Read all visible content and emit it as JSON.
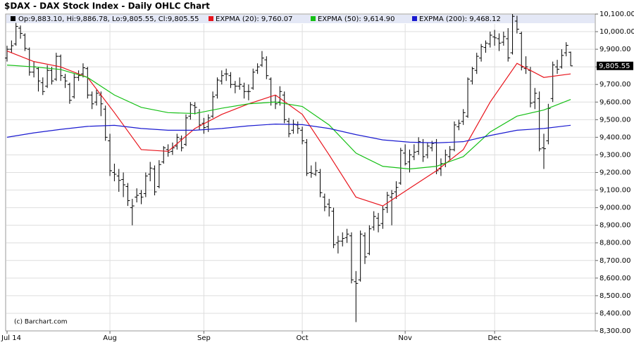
{
  "chart_data": {
    "type": "ohlc",
    "title": "$DAX - DAX Stock Index - Daily OHLC Chart",
    "watermark": "(c) Barchart.com",
    "header": "Op:9,883.10, Hi:9,886.78, Lo:9,805.55, Cl:9,805.55",
    "header_color": "#000000",
    "bar_color": "#000000",
    "grid": true,
    "ylim": [
      8300,
      10100
    ],
    "yticks": [
      {
        "value": 8300,
        "label": "8,300.00"
      },
      {
        "value": 8400,
        "label": "8,400.00"
      },
      {
        "value": 8500,
        "label": "8,500.00"
      },
      {
        "value": 8600,
        "label": "8,600.00"
      },
      {
        "value": 8700,
        "label": "8,700.00"
      },
      {
        "value": 8800,
        "label": "8,800.00"
      },
      {
        "value": 8900,
        "label": "8,900.00"
      },
      {
        "value": 9000,
        "label": "9,000.00"
      },
      {
        "value": 9100,
        "label": "9,100.00"
      },
      {
        "value": 9200,
        "label": "9,200.00"
      },
      {
        "value": 9300,
        "label": "9,300.00"
      },
      {
        "value": 9400,
        "label": "9,400.00"
      },
      {
        "value": 9500,
        "label": "9,500.00"
      },
      {
        "value": 9600,
        "label": "9,600.00"
      },
      {
        "value": 9700,
        "label": "9,700.00"
      },
      {
        "value": 9800,
        "label": "9,800.00"
      },
      {
        "value": 9900,
        "label": "9,900.00"
      },
      {
        "value": 10000,
        "label": "10,000.00"
      },
      {
        "value": 10100,
        "label": "10,100.00"
      }
    ],
    "last_price": {
      "value": 9805.55,
      "label": "9,805.55"
    },
    "categories": [
      "Jul 14",
      null,
      null,
      null,
      null,
      null,
      null,
      null,
      null,
      null,
      null,
      null,
      null,
      null,
      null,
      null,
      null,
      null,
      null,
      null,
      null,
      null,
      null,
      "Aug",
      null,
      null,
      null,
      null,
      null,
      null,
      null,
      null,
      null,
      null,
      null,
      null,
      null,
      null,
      null,
      null,
      null,
      null,
      null,
      null,
      "Sep",
      null,
      null,
      null,
      null,
      null,
      null,
      null,
      null,
      null,
      null,
      null,
      null,
      null,
      null,
      null,
      null,
      null,
      null,
      null,
      null,
      null,
      "Oct",
      null,
      null,
      null,
      null,
      null,
      null,
      null,
      null,
      null,
      null,
      null,
      null,
      null,
      null,
      null,
      null,
      null,
      null,
      null,
      null,
      null,
      null,
      "Nov",
      null,
      null,
      null,
      null,
      null,
      null,
      null,
      null,
      null,
      null,
      null,
      null,
      null,
      null,
      null,
      null,
      null,
      null,
      null,
      "Dec",
      null,
      null,
      null,
      null,
      null,
      null,
      null,
      null,
      null,
      null,
      null,
      null,
      null,
      null,
      null,
      null,
      null
    ],
    "ohlc": [
      [
        9850,
        9920,
        9830,
        9900
      ],
      [
        9900,
        9950,
        9880,
        9920
      ],
      [
        9930,
        10050,
        9920,
        10030
      ],
      [
        10020,
        10035,
        9960,
        9990
      ],
      [
        9980,
        9990,
        9890,
        9905
      ],
      [
        9900,
        9910,
        9750,
        9770
      ],
      [
        9770,
        9830,
        9740,
        9800
      ],
      [
        9790,
        9800,
        9660,
        9720
      ],
      [
        9710,
        9740,
        9640,
        9660
      ],
      [
        9690,
        9810,
        9680,
        9780
      ],
      [
        9780,
        9800,
        9700,
        9720
      ],
      [
        9730,
        9880,
        9720,
        9860
      ],
      [
        9860,
        9870,
        9720,
        9750
      ],
      [
        9740,
        9760,
        9680,
        9720
      ],
      [
        9700,
        9710,
        9590,
        9610
      ],
      [
        9630,
        9760,
        9620,
        9740
      ],
      [
        9740,
        9780,
        9720,
        9750
      ],
      [
        9760,
        9820,
        9740,
        9795
      ],
      [
        9790,
        9800,
        9620,
        9640
      ],
      [
        9640,
        9660,
        9560,
        9590
      ],
      [
        9600,
        9670,
        9580,
        9650
      ],
      [
        9640,
        9660,
        9520,
        9590
      ],
      [
        9560,
        9580,
        9380,
        9400
      ],
      [
        9380,
        9420,
        9180,
        9210
      ],
      [
        9200,
        9250,
        9150,
        9190
      ],
      [
        9180,
        9220,
        9090,
        9155
      ],
      [
        9160,
        9200,
        9060,
        9130
      ],
      [
        9120,
        9140,
        9010,
        9040
      ],
      [
        9000,
        9050,
        8900,
        9010
      ],
      [
        9060,
        9110,
        9030,
        9070
      ],
      [
        9080,
        9100,
        9020,
        9060
      ],
      [
        9080,
        9200,
        9060,
        9180
      ],
      [
        9190,
        9260,
        9150,
        9225
      ],
      [
        9220,
        9240,
        9070,
        9090
      ],
      [
        9120,
        9270,
        9110,
        9245
      ],
      [
        9260,
        9350,
        9250,
        9340
      ],
      [
        9330,
        9360,
        9290,
        9315
      ],
      [
        9320,
        9370,
        9300,
        9340
      ],
      [
        9350,
        9420,
        9330,
        9400
      ],
      [
        9390,
        9410,
        9320,
        9340
      ],
      [
        9360,
        9530,
        9350,
        9510
      ],
      [
        9520,
        9600,
        9500,
        9585
      ],
      [
        9580,
        9600,
        9530,
        9570
      ],
      [
        9540,
        9560,
        9440,
        9470
      ],
      [
        9480,
        9510,
        9420,
        9455
      ],
      [
        9460,
        9530,
        9430,
        9510
      ],
      [
        9520,
        9660,
        9510,
        9630
      ],
      [
        9640,
        9740,
        9620,
        9725
      ],
      [
        9720,
        9780,
        9700,
        9750
      ],
      [
        9760,
        9790,
        9720,
        9760
      ],
      [
        9750,
        9770,
        9680,
        9700
      ],
      [
        9700,
        9720,
        9650,
        9690
      ],
      [
        9690,
        9740,
        9670,
        9700
      ],
      [
        9690,
        9710,
        9620,
        9660
      ],
      [
        9660,
        9700,
        9610,
        9660
      ],
      [
        9680,
        9790,
        9670,
        9770
      ],
      [
        9780,
        9820,
        9760,
        9800
      ],
      [
        9810,
        9890,
        9800,
        9850
      ],
      [
        9840,
        9860,
        9730,
        9750
      ],
      [
        9730,
        9740,
        9580,
        9600
      ],
      [
        9600,
        9640,
        9560,
        9590
      ],
      [
        9600,
        9690,
        9580,
        9660
      ],
      [
        9640,
        9660,
        9480,
        9500
      ],
      [
        9490,
        9510,
        9400,
        9420
      ],
      [
        9440,
        9500,
        9420,
        9475
      ],
      [
        9470,
        9490,
        9420,
        9450
      ],
      [
        9440,
        9460,
        9360,
        9380
      ],
      [
        9370,
        9390,
        9180,
        9195
      ],
      [
        9200,
        9240,
        9170,
        9195
      ],
      [
        9190,
        9260,
        9180,
        9210
      ],
      [
        9200,
        9220,
        9060,
        9085
      ],
      [
        9060,
        9080,
        8980,
        9005
      ],
      [
        9020,
        9050,
        8950,
        9000
      ],
      [
        8980,
        9000,
        8770,
        8790
      ],
      [
        8800,
        8840,
        8740,
        8810
      ],
      [
        8810,
        8860,
        8780,
        8825
      ],
      [
        8830,
        8880,
        8800,
        8850
      ],
      [
        8840,
        8860,
        8570,
        8590
      ],
      [
        8580,
        8640,
        8350,
        8570
      ],
      [
        8590,
        8870,
        8580,
        8850
      ],
      [
        8840,
        8860,
        8680,
        8720
      ],
      [
        8740,
        8900,
        8730,
        8880
      ],
      [
        8890,
        8980,
        8870,
        8950
      ],
      [
        8940,
        8970,
        8860,
        8900
      ],
      [
        8910,
        9010,
        8880,
        8990
      ],
      [
        9000,
        9090,
        8970,
        9070
      ],
      [
        9060,
        9100,
        8900,
        9080
      ],
      [
        9090,
        9150,
        9050,
        9115
      ],
      [
        9140,
        9340,
        9130,
        9325
      ],
      [
        9310,
        9360,
        9240,
        9250
      ],
      [
        9260,
        9330,
        9200,
        9300
      ],
      [
        9290,
        9360,
        9270,
        9315
      ],
      [
        9320,
        9400,
        9300,
        9375
      ],
      [
        9370,
        9390,
        9260,
        9290
      ],
      [
        9300,
        9370,
        9280,
        9350
      ],
      [
        9340,
        9380,
        9320,
        9365
      ],
      [
        9370,
        9390,
        9190,
        9210
      ],
      [
        9220,
        9280,
        9180,
        9250
      ],
      [
        9250,
        9330,
        9230,
        9300
      ],
      [
        9290,
        9350,
        9270,
        9330
      ],
      [
        9330,
        9490,
        9320,
        9470
      ],
      [
        9460,
        9500,
        9440,
        9480
      ],
      [
        9490,
        9560,
        9470,
        9540
      ],
      [
        9520,
        9740,
        9510,
        9730
      ],
      [
        9720,
        9800,
        9700,
        9790
      ],
      [
        9780,
        9880,
        9760,
        9860
      ],
      [
        9850,
        9930,
        9830,
        9915
      ],
      [
        9910,
        9950,
        9880,
        9935
      ],
      [
        9930,
        10000,
        9910,
        9980
      ],
      [
        9970,
        10010,
        9920,
        9965
      ],
      [
        9960,
        9990,
        9890,
        9935
      ],
      [
        9940,
        10000,
        9920,
        9972
      ],
      [
        9960,
        10020,
        9830,
        9851
      ],
      [
        9880,
        10100,
        9870,
        10087
      ],
      [
        10060,
        10090,
        9990,
        10014
      ],
      [
        9990,
        10000,
        9780,
        9799
      ],
      [
        9790,
        9860,
        9760,
        9800
      ],
      [
        9780,
        9800,
        9570,
        9594
      ],
      [
        9600,
        9680,
        9560,
        9650
      ],
      [
        9620,
        9660,
        9320,
        9334
      ],
      [
        9340,
        9420,
        9220,
        9335
      ],
      [
        9380,
        9590,
        9360,
        9564
      ],
      [
        9620,
        9830,
        9600,
        9811
      ],
      [
        9800,
        9840,
        9760,
        9786
      ],
      [
        9800,
        9900,
        9790,
        9865
      ],
      [
        9880,
        9940,
        9860,
        9922
      ],
      [
        9883.1,
        9886.78,
        9805.55,
        9805.55
      ]
    ],
    "series": [
      {
        "name": "EXPMA (20): 9,760.07",
        "color": "#e8141c",
        "x": [
          0,
          6,
          12,
          18,
          24,
          30,
          36,
          42,
          48,
          54,
          60,
          66,
          72,
          78,
          84,
          90,
          96,
          102,
          108,
          114,
          120,
          126
        ],
        "values": [
          9890,
          9830,
          9800,
          9740,
          9540,
          9330,
          9320,
          9450,
          9530,
          9590,
          9640,
          9530,
          9300,
          9060,
          9010,
          9110,
          9210,
          9330,
          9600,
          9820,
          9740,
          9760.07
        ]
      },
      {
        "name": "EXPMA (50): 9,614.90",
        "color": "#16c016",
        "x": [
          0,
          6,
          12,
          18,
          24,
          30,
          36,
          42,
          48,
          54,
          60,
          66,
          72,
          78,
          84,
          90,
          96,
          102,
          108,
          114,
          120,
          126
        ],
        "values": [
          9810,
          9800,
          9785,
          9740,
          9640,
          9570,
          9540,
          9535,
          9565,
          9590,
          9600,
          9575,
          9470,
          9310,
          9235,
          9220,
          9235,
          9290,
          9430,
          9520,
          9555,
          9614.9
        ]
      },
      {
        "name": "EXPMA (200): 9,468.12",
        "color": "#1a1ad0",
        "x": [
          0,
          6,
          12,
          18,
          24,
          30,
          36,
          42,
          48,
          54,
          60,
          66,
          72,
          78,
          84,
          90,
          96,
          102,
          108,
          114,
          120,
          126
        ],
        "values": [
          9400,
          9425,
          9445,
          9462,
          9468,
          9450,
          9440,
          9440,
          9450,
          9465,
          9475,
          9472,
          9450,
          9415,
          9385,
          9372,
          9368,
          9375,
          9410,
          9440,
          9450,
          9468.12
        ]
      }
    ]
  }
}
